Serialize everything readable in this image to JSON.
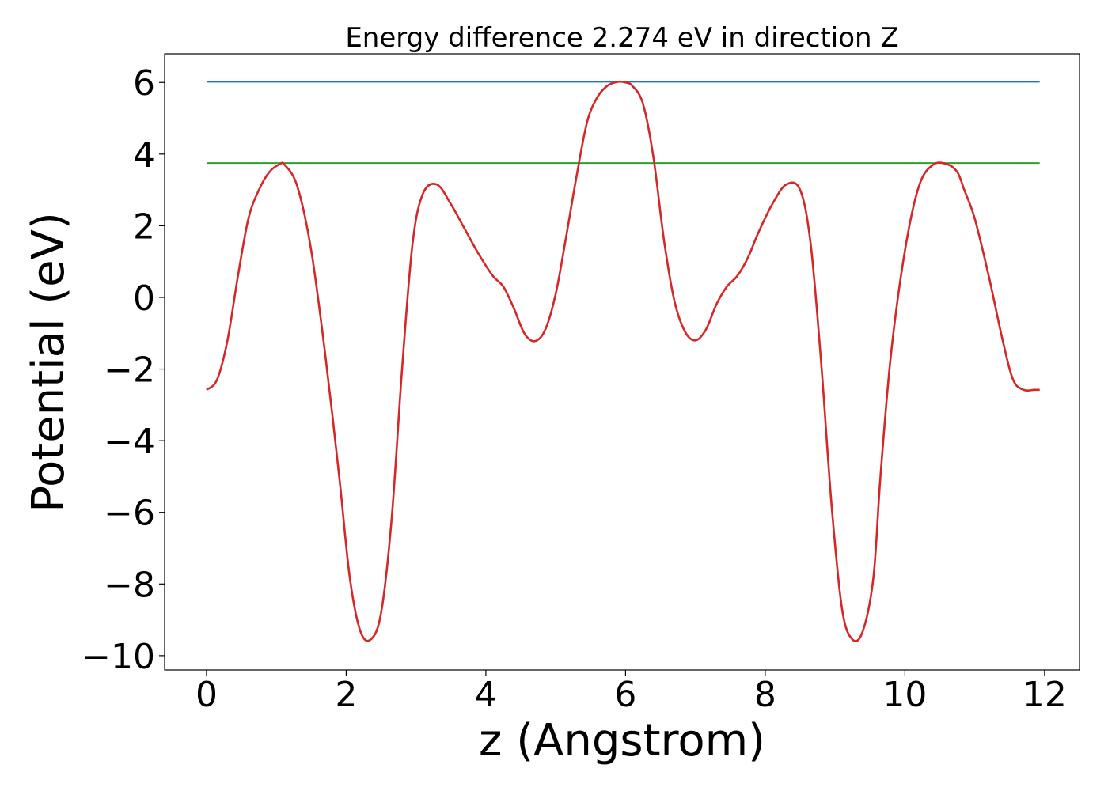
{
  "chart_data": {
    "type": "line",
    "title": "Energy difference 2.274 eV in direction Z",
    "xlabel": "z (Angstrom)",
    "ylabel": "Potential (eV)",
    "xlim": [
      -0.6,
      12.5
    ],
    "ylim": [
      -10.4,
      6.8
    ],
    "xticks": [
      0,
      2,
      4,
      6,
      8,
      10,
      12
    ],
    "yticks": [
      -10,
      -8,
      -6,
      -4,
      -2,
      0,
      2,
      4,
      6
    ],
    "xtick_labels": [
      "0",
      "2",
      "4",
      "6",
      "8",
      "10",
      "12"
    ],
    "ytick_labels": [
      "−10",
      "−8",
      "−6",
      "−4",
      "−2",
      "0",
      "2",
      "4",
      "6"
    ],
    "grid": false,
    "series": [
      {
        "kind": "hline",
        "color": "#1f77b4",
        "x": [
          0,
          11.93
        ],
        "y": [
          6.02,
          6.02
        ]
      },
      {
        "kind": "hline",
        "color": "#2ca02c",
        "x": [
          0,
          11.93
        ],
        "y": [
          3.75,
          3.75
        ]
      },
      {
        "kind": "curve",
        "color": "#d62728",
        "x": [
          0,
          0.15,
          0.3,
          0.45,
          0.6,
          0.75,
          0.9,
          1.05,
          1.12,
          1.3,
          1.5,
          1.7,
          1.9,
          2.05,
          2.2,
          2.35,
          2.5,
          2.65,
          2.8,
          2.95,
          3.1,
          3.3,
          3.5,
          3.7,
          3.9,
          4.1,
          4.25,
          4.4,
          4.55,
          4.7,
          4.85,
          5.0,
          5.15,
          5.3,
          5.45,
          5.6,
          5.75,
          5.9,
          6.0,
          6.1,
          6.25,
          6.4,
          6.55,
          6.7,
          6.85,
          7.0,
          7.15,
          7.3,
          7.45,
          7.6,
          7.75,
          7.9,
          8.1,
          8.3,
          8.5,
          8.65,
          8.8,
          8.95,
          9.1,
          9.25,
          9.4,
          9.55,
          9.65,
          9.8,
          10.0,
          10.2,
          10.4,
          10.6,
          10.75,
          10.85,
          11.0,
          11.2,
          11.4,
          11.55,
          11.7,
          11.85,
          11.93
        ],
        "y": [
          -2.58,
          -2.3,
          -1.2,
          0.6,
          2.2,
          3.0,
          3.5,
          3.72,
          3.7,
          3.1,
          1.3,
          -1.6,
          -5.0,
          -7.8,
          -9.3,
          -9.55,
          -8.8,
          -6.2,
          -2.0,
          1.5,
          2.9,
          3.15,
          2.6,
          1.9,
          1.2,
          0.6,
          0.3,
          -0.3,
          -1.0,
          -1.22,
          -0.9,
          0.1,
          1.7,
          3.4,
          4.9,
          5.6,
          5.92,
          6.02,
          6.0,
          5.9,
          5.4,
          3.9,
          1.6,
          -0.1,
          -0.95,
          -1.2,
          -0.9,
          -0.2,
          0.3,
          0.6,
          1.1,
          1.8,
          2.6,
          3.15,
          3.0,
          1.5,
          -1.8,
          -5.8,
          -8.7,
          -9.55,
          -9.3,
          -7.8,
          -5.0,
          -1.6,
          1.3,
          3.1,
          3.7,
          3.72,
          3.5,
          3.0,
          2.2,
          0.6,
          -1.2,
          -2.3,
          -2.58,
          -2.58,
          -2.58
        ]
      }
    ]
  }
}
